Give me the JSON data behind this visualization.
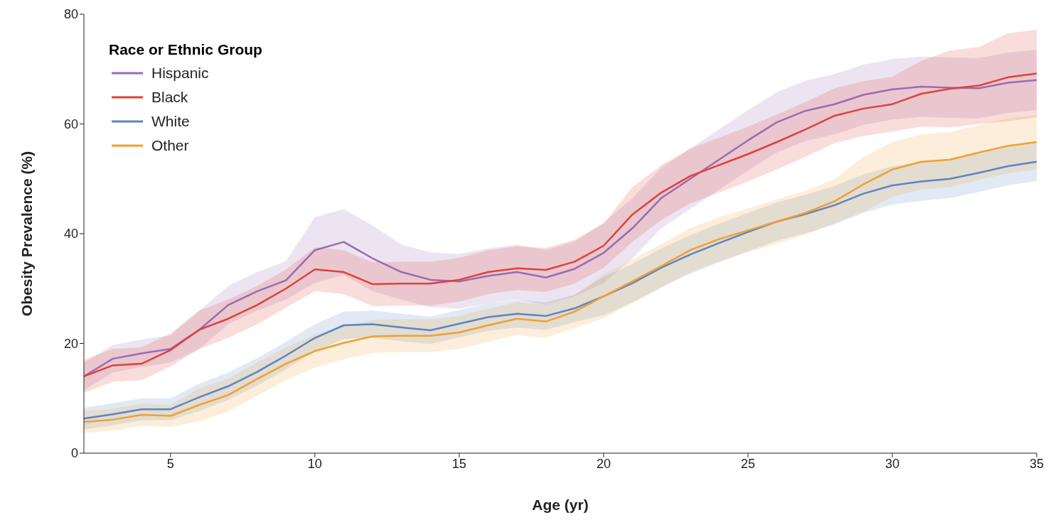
{
  "chart_data": {
    "type": "line",
    "xlabel": "Age (yr)",
    "ylabel": "Obesity Prevalence (%)",
    "legend_title": "Race or Ethnic Group",
    "legend": "top left",
    "marker": "none",
    "line_style": "solid",
    "x": [
      2,
      3,
      4,
      5,
      6,
      7,
      8,
      9,
      10,
      11,
      12,
      13,
      14,
      15,
      16,
      17,
      18,
      19,
      20,
      21,
      22,
      23,
      24,
      25,
      26,
      27,
      28,
      29,
      30,
      31,
      32,
      33,
      34,
      35
    ],
    "xlim": [
      2,
      35
    ],
    "xticks": [
      5,
      10,
      15,
      20,
      25,
      30,
      35
    ],
    "ylim": [
      0,
      80
    ],
    "yticks": [
      0,
      20,
      40,
      60,
      80
    ],
    "series": [
      {
        "name": "Hispanic",
        "color": "#9b6bb0",
        "values": [
          14,
          17.2,
          18.2,
          19,
          22.5,
          27,
          29.5,
          31.5,
          37,
          38.5,
          35.5,
          33,
          31.6,
          31.3,
          32.3,
          33,
          32,
          33.6,
          36.5,
          41,
          46.5,
          50,
          53.5,
          57,
          60.3,
          62.4,
          63.6,
          65.3,
          66.3,
          66.8,
          66.6,
          66.5,
          67.5,
          68
        ],
        "lower": [
          11.5,
          14.7,
          15.7,
          16.5,
          19,
          23.5,
          26,
          28,
          31,
          32.5,
          29.5,
          28,
          26.6,
          26.3,
          27.3,
          28,
          27,
          28.6,
          31,
          35.5,
          41,
          44.5,
          48,
          51.5,
          54.8,
          56.9,
          58.1,
          59.8,
          60.8,
          61.3,
          61.1,
          61,
          62,
          62.5
        ],
        "upper": [
          16.5,
          19.7,
          20.7,
          21.5,
          26,
          30.5,
          33,
          35,
          43,
          44.5,
          41.5,
          38,
          36.6,
          36.3,
          37.3,
          38,
          37,
          38.6,
          42,
          46.5,
          52,
          55.5,
          59,
          62.5,
          65.8,
          67.9,
          69.1,
          70.8,
          71.8,
          72.3,
          72.1,
          72,
          73,
          73.5
        ]
      },
      {
        "name": "Black",
        "color": "#e0403a",
        "values": [
          14,
          16,
          16.3,
          18.8,
          22.5,
          24.5,
          27,
          30,
          33.5,
          33,
          30.8,
          30.9,
          30.9,
          31.6,
          33,
          33.7,
          33.4,
          34.9,
          37.8,
          43.5,
          47.5,
          50.5,
          52.5,
          54.5,
          56.7,
          59,
          61.5,
          62.8,
          63.6,
          65.5,
          66.4,
          67,
          68.5,
          69.2
        ],
        "lower": [
          11,
          13,
          13.3,
          15.8,
          19,
          21,
          23.5,
          26.5,
          29.5,
          29,
          26.8,
          26.9,
          26.9,
          27.6,
          29,
          29.7,
          29.4,
          30.9,
          33.8,
          38.5,
          42.5,
          45.5,
          47.5,
          49.5,
          51.7,
          54,
          56.5,
          57.8,
          58.6,
          59.5,
          59.4,
          60,
          60.5,
          61.2
        ],
        "upper": [
          17,
          19,
          19.3,
          21.8,
          26,
          28,
          30.5,
          33.5,
          37.5,
          37,
          34.8,
          34.9,
          34.9,
          35.6,
          37,
          37.7,
          37.4,
          38.9,
          41.8,
          48.5,
          52.5,
          55.5,
          57.5,
          59.5,
          61.7,
          64,
          66.5,
          67.8,
          68.6,
          71.5,
          73.4,
          74,
          76.5,
          77.2
        ]
      },
      {
        "name": "White",
        "color": "#5b84c4",
        "values": [
          6.3,
          7.1,
          8,
          8,
          10.2,
          12.2,
          14.8,
          17.8,
          21,
          23.3,
          23.5,
          22.9,
          22.4,
          23.6,
          24.8,
          25.4,
          25,
          26.4,
          28.6,
          31,
          33.8,
          36.2,
          38.3,
          40.3,
          42.2,
          43.6,
          45.2,
          47.3,
          48.8,
          49.5,
          50,
          51.1,
          52.3,
          53.1
        ],
        "lower": [
          4.3,
          5.1,
          6,
          6,
          7.7,
          9.7,
          12.3,
          15.3,
          18.5,
          20.8,
          21,
          20.4,
          19.9,
          21.1,
          22.3,
          22.9,
          22.5,
          23.9,
          25.1,
          27.5,
          30.3,
          32.7,
          34.8,
          36.8,
          38.7,
          40.1,
          41.7,
          43.8,
          45.3,
          46,
          46.5,
          47.6,
          48.8,
          49.6
        ],
        "upper": [
          8.3,
          9.1,
          10,
          10,
          12.7,
          14.7,
          17.3,
          20.3,
          23.5,
          25.8,
          26,
          25.4,
          24.9,
          26.1,
          27.3,
          27.9,
          27.5,
          28.9,
          32.1,
          34.5,
          37.3,
          39.7,
          41.8,
          43.8,
          45.7,
          47.1,
          48.7,
          50.8,
          52.3,
          53,
          53.5,
          54.6,
          55.8,
          56.6
        ]
      },
      {
        "name": "Other",
        "color": "#f0a030",
        "values": [
          5.7,
          6.1,
          7,
          6.8,
          8.8,
          10.6,
          13.5,
          16.3,
          18.6,
          20.1,
          21.3,
          21.4,
          21.4,
          22,
          23.3,
          24.5,
          24,
          25.8,
          28.6,
          31.3,
          34.1,
          37,
          39,
          40.6,
          42.2,
          43.8,
          45.9,
          49,
          51.7,
          53.1,
          53.5,
          54.8,
          56,
          56.7
        ],
        "lower": [
          3.7,
          4.1,
          5,
          4.8,
          5.8,
          7.6,
          10.5,
          13.3,
          15.6,
          17.1,
          18.3,
          18.4,
          18.4,
          19,
          20.3,
          21.5,
          21,
          22.8,
          24.6,
          27.3,
          30.1,
          33,
          35,
          36.6,
          38.2,
          39.8,
          41.9,
          44,
          46.7,
          48.1,
          48.5,
          49.8,
          51,
          51.7
        ],
        "upper": [
          7.7,
          8.1,
          9,
          8.8,
          11.8,
          13.6,
          16.5,
          19.3,
          21.6,
          23.1,
          24.3,
          24.4,
          24.4,
          25,
          26.3,
          27.5,
          27,
          28.8,
          32.6,
          35.3,
          38.1,
          41,
          43,
          44.6,
          46.2,
          47.8,
          49.9,
          54,
          56.7,
          58.1,
          58.5,
          59.8,
          61,
          61.7
        ]
      }
    ]
  }
}
